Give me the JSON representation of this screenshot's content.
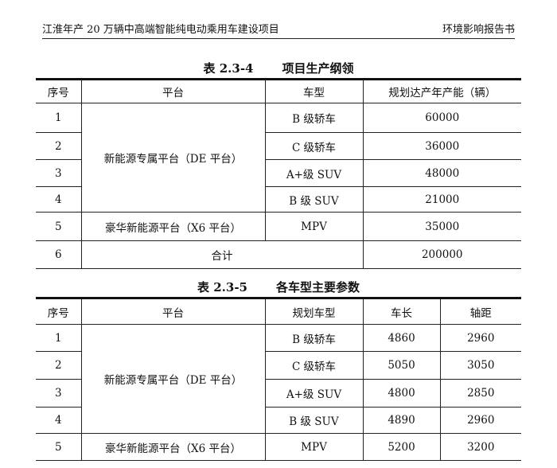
{
  "header": {
    "left": "江淮年产 20 万辆中高端智能纯电动乘用车建设项目",
    "right": "环境影响报告书"
  },
  "table1": {
    "number": "表 2.3-4",
    "title": "项目生产纲领",
    "headers": [
      "序号",
      "平台",
      "车型",
      "规划达产年产能（辆）"
    ],
    "platform_de": "新能源专属平台（DE 平台）",
    "platform_x6": "豪华新能源平台（X6 平台）",
    "total_label": "合计",
    "rows": [
      {
        "no": "1",
        "model": "B 级轿车",
        "capacity": "60000"
      },
      {
        "no": "2",
        "model": "C 级轿车",
        "capacity": "36000"
      },
      {
        "no": "3",
        "model": "A+级 SUV",
        "capacity": "48000"
      },
      {
        "no": "4",
        "model": "B 级 SUV",
        "capacity": "21000"
      },
      {
        "no": "5",
        "model": "MPV",
        "capacity": "35000"
      },
      {
        "no": "6",
        "capacity": "200000"
      }
    ]
  },
  "table2": {
    "number": "表 2.3-5",
    "title": "各车型主要参数",
    "headers": [
      "序号",
      "平台",
      "规划车型",
      "车长",
      "轴距"
    ],
    "platform_de": "新能源专属平台（DE 平台）",
    "platform_x6": "豪华新能源平台（X6 平台）",
    "rows": [
      {
        "no": "1",
        "model": "B 级轿车",
        "length": "4860",
        "wheelbase": "2960"
      },
      {
        "no": "2",
        "model": "C 级轿车",
        "length": "5050",
        "wheelbase": "3050"
      },
      {
        "no": "3",
        "model": "A+级 SUV",
        "length": "4800",
        "wheelbase": "2850"
      },
      {
        "no": "4",
        "model": "B 级 SUV",
        "length": "4890",
        "wheelbase": "2960"
      },
      {
        "no": "5",
        "model": "MPV",
        "length": "5200",
        "wheelbase": "3200"
      }
    ]
  }
}
